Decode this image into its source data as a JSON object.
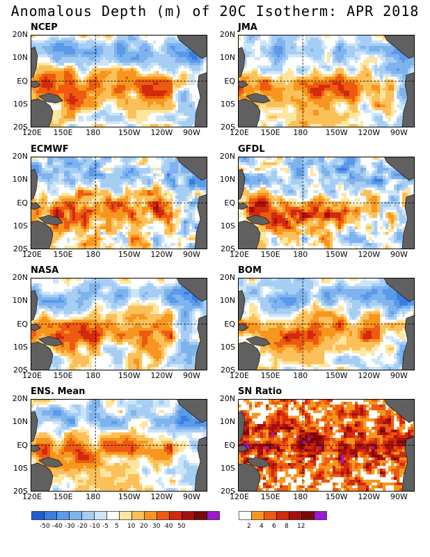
{
  "title": "Anomalous Depth (m) of 20C Isotherm: APR 2018",
  "y_ticks": [
    "20N",
    "10N",
    "EQ",
    "10S",
    "20S"
  ],
  "x_ticks": [
    "120E",
    "150E",
    "180",
    "150W",
    "120W",
    "90W"
  ],
  "panels": [
    {
      "name": "NCEP"
    },
    {
      "name": "JMA"
    },
    {
      "name": "ECMWF"
    },
    {
      "name": "GFDL"
    },
    {
      "name": "NASA"
    },
    {
      "name": "BOM"
    },
    {
      "name": "ENS. Mean"
    },
    {
      "name": "SN Ratio"
    }
  ],
  "colorbar_depth": {
    "labels": [
      "-50",
      "-40",
      "-30",
      "-20",
      "-10",
      "-5",
      "5",
      "10",
      "20",
      "30",
      "40",
      "50"
    ],
    "colors": [
      "#1e5fd0",
      "#3a7ee0",
      "#5a9ae8",
      "#7fb3ee",
      "#a6cdf4",
      "#cbe5f8",
      "#ffffff",
      "#fde6a0",
      "#fbc05a",
      "#f7961e",
      "#ee5a10",
      "#d22a0c",
      "#a8100c",
      "#7a0808",
      "#9a1ad0"
    ]
  },
  "colorbar_sn": {
    "labels": [
      "2",
      "4",
      "6",
      "8",
      "12"
    ],
    "colors": [
      "#ffffff",
      "#f7961e",
      "#ee5a10",
      "#d22a0c",
      "#a8100c",
      "#7a0808",
      "#9a1ad0"
    ]
  },
  "colors": {
    "land": "#606060",
    "frame": "#000000"
  }
}
